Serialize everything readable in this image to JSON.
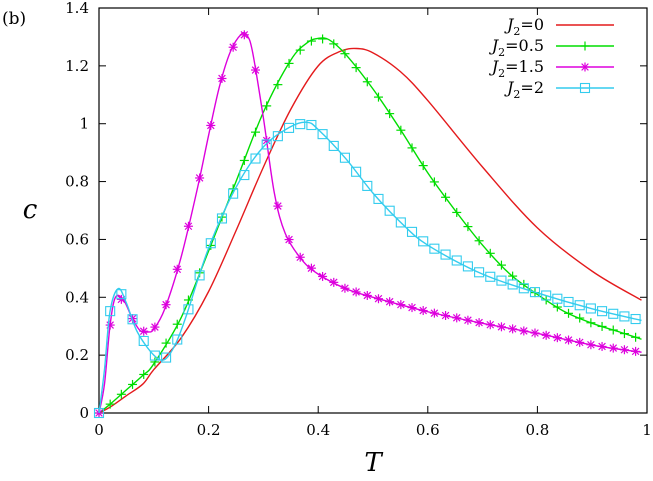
{
  "chart_data": {
    "type": "line",
    "panel_label": "(b)",
    "xlabel": "T",
    "ylabel": "c",
    "xlim": [
      0,
      1
    ],
    "ylim": [
      0,
      1.4
    ],
    "x_ticks": [
      "0",
      "0.2",
      "0.4",
      "0.6",
      "0.8",
      "1"
    ],
    "y_ticks": [
      "0",
      "0.2",
      "0.4",
      "0.6",
      "0.8",
      "1",
      "1.2",
      "1.4"
    ],
    "grid": false,
    "legend_position": "top-right",
    "series": [
      {
        "name": "J2=0",
        "legend_main": "J",
        "legend_sub": "2",
        "legend_rest": "=0",
        "color": "#e41a1c",
        "marker": "none",
        "points": [
          [
            0,
            0
          ],
          [
            0.02,
            0.02
          ],
          [
            0.05,
            0.06
          ],
          [
            0.08,
            0.1
          ],
          [
            0.1,
            0.15
          ],
          [
            0.15,
            0.26
          ],
          [
            0.2,
            0.42
          ],
          [
            0.25,
            0.63
          ],
          [
            0.3,
            0.85
          ],
          [
            0.35,
            1.05
          ],
          [
            0.4,
            1.2
          ],
          [
            0.44,
            1.25
          ],
          [
            0.47,
            1.26
          ],
          [
            0.5,
            1.245
          ],
          [
            0.55,
            1.18
          ],
          [
            0.6,
            1.08
          ],
          [
            0.7,
            0.85
          ],
          [
            0.8,
            0.64
          ],
          [
            0.9,
            0.49
          ],
          [
            0.99,
            0.39
          ]
        ]
      },
      {
        "name": "J2=0.5",
        "legend_main": "J",
        "legend_sub": "2",
        "legend_rest": "=0.5",
        "color": "#00dd00",
        "marker": "plus",
        "points": [
          [
            0,
            0
          ],
          [
            0.02,
            0.03
          ],
          [
            0.05,
            0.08
          ],
          [
            0.08,
            0.13
          ],
          [
            0.1,
            0.17
          ],
          [
            0.15,
            0.33
          ],
          [
            0.2,
            0.56
          ],
          [
            0.25,
            0.8
          ],
          [
            0.3,
            1.04
          ],
          [
            0.35,
            1.22
          ],
          [
            0.38,
            1.28
          ],
          [
            0.4,
            1.295
          ],
          [
            0.42,
            1.29
          ],
          [
            0.45,
            1.24
          ],
          [
            0.5,
            1.12
          ],
          [
            0.55,
            0.98
          ],
          [
            0.6,
            0.83
          ],
          [
            0.65,
            0.7
          ],
          [
            0.7,
            0.58
          ],
          [
            0.75,
            0.48
          ],
          [
            0.8,
            0.41
          ],
          [
            0.85,
            0.35
          ],
          [
            0.9,
            0.31
          ],
          [
            0.95,
            0.28
          ],
          [
            0.99,
            0.255
          ]
        ]
      },
      {
        "name": "J2=1.5",
        "legend_main": "J",
        "legend_sub": "2",
        "legend_rest": "=1.5",
        "color": "#dd00dd",
        "marker": "star",
        "points": [
          [
            0,
            0
          ],
          [
            0.01,
            0.1
          ],
          [
            0.02,
            0.3
          ],
          [
            0.03,
            0.4
          ],
          [
            0.045,
            0.39
          ],
          [
            0.06,
            0.33
          ],
          [
            0.075,
            0.285
          ],
          [
            0.09,
            0.28
          ],
          [
            0.1,
            0.29
          ],
          [
            0.12,
            0.36
          ],
          [
            0.15,
            0.54
          ],
          [
            0.18,
            0.78
          ],
          [
            0.2,
            0.96
          ],
          [
            0.22,
            1.13
          ],
          [
            0.24,
            1.25
          ],
          [
            0.26,
            1.31
          ],
          [
            0.27,
            1.305
          ],
          [
            0.28,
            1.25
          ],
          [
            0.3,
            1.02
          ],
          [
            0.32,
            0.76
          ],
          [
            0.34,
            0.62
          ],
          [
            0.37,
            0.53
          ],
          [
            0.4,
            0.48
          ],
          [
            0.45,
            0.43
          ],
          [
            0.5,
            0.4
          ],
          [
            0.6,
            0.35
          ],
          [
            0.7,
            0.31
          ],
          [
            0.8,
            0.275
          ],
          [
            0.9,
            0.235
          ],
          [
            0.99,
            0.21
          ]
        ]
      },
      {
        "name": "J2=2",
        "legend_main": "J",
        "legend_sub": "2",
        "legend_rest": "=2",
        "color": "#33ccee",
        "marker": "square",
        "points": [
          [
            0,
            0
          ],
          [
            0.01,
            0.15
          ],
          [
            0.02,
            0.35
          ],
          [
            0.035,
            0.43
          ],
          [
            0.05,
            0.38
          ],
          [
            0.07,
            0.28
          ],
          [
            0.1,
            0.2
          ],
          [
            0.12,
            0.185
          ],
          [
            0.14,
            0.24
          ],
          [
            0.16,
            0.34
          ],
          [
            0.2,
            0.57
          ],
          [
            0.25,
            0.78
          ],
          [
            0.3,
            0.92
          ],
          [
            0.35,
            0.99
          ],
          [
            0.38,
            1.005
          ],
          [
            0.4,
            0.98
          ],
          [
            0.45,
            0.88
          ],
          [
            0.5,
            0.76
          ],
          [
            0.55,
            0.66
          ],
          [
            0.6,
            0.58
          ],
          [
            0.7,
            0.48
          ],
          [
            0.8,
            0.415
          ],
          [
            0.9,
            0.36
          ],
          [
            0.99,
            0.32
          ]
        ]
      }
    ]
  }
}
